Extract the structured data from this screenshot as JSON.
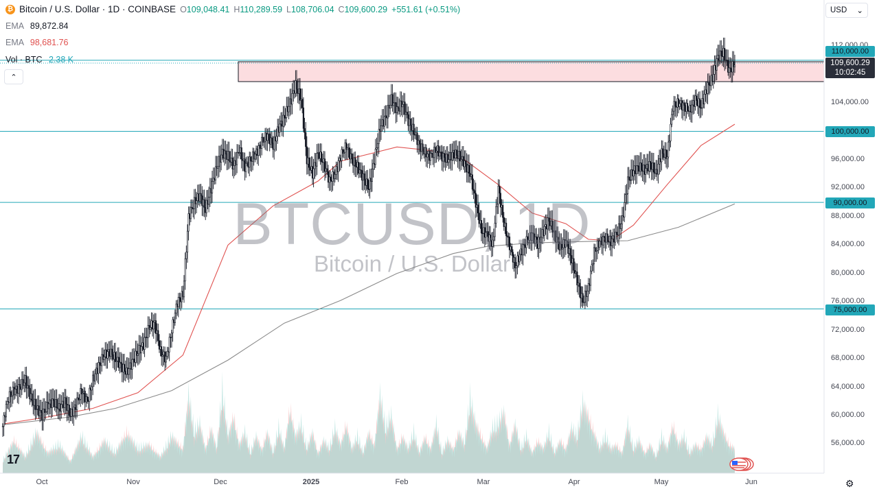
{
  "legend": {
    "coin_symbol": "₿",
    "title": "Bitcoin / U.S. Dollar · 1D · COINBASE",
    "open_key": "O",
    "open": "109,048.41",
    "high_key": "H",
    "high": "110,289.59",
    "low_key": "L",
    "low": "108,706.04",
    "close_key": "C",
    "close": "109,600.29",
    "change": "+551.61 (+0.51%)",
    "ema1_label": "EMA",
    "ema1_value": "89,872.84",
    "ema2_label": "EMA",
    "ema2_value": "98,681.76",
    "vol_label": "Vol · BTC",
    "vol_value": "2.38 K",
    "collapse_icon": "chevron-up-icon",
    "collapse_glyph": "⌃"
  },
  "currency": {
    "value": "USD",
    "chevron": "⌄"
  },
  "watermark": {
    "symbol": "BTCUSD, 1D",
    "name": "Bitcoin / U.S. Dollar"
  },
  "price_tags": {
    "level_110k": "110,000.00",
    "current_price": "109,600.29",
    "countdown": "10:02:45",
    "level_100k": "100,000.00",
    "level_90k": "90,000.00",
    "level_75k": "75,000.00"
  },
  "y_axis_ticks": [
    "112,000.00",
    "104,000.00",
    "96,000.00",
    "92,000.00",
    "88,000.00",
    "84,000.00",
    "80,000.00",
    "76,000.00",
    "72,000.00",
    "68,000.00",
    "64,000.00",
    "60,000.00",
    "56,000.00"
  ],
  "x_axis_ticks": [
    "Oct",
    "Nov",
    "Dec",
    "2025",
    "Feb",
    "Mar",
    "Apr",
    "May",
    "Jun"
  ],
  "logo_text": "17",
  "colors": {
    "up": "#089981",
    "down": "#131722",
    "ema50": "#e0514f",
    "ema200": "#8a8a8a",
    "levels": "#22a7b8",
    "zone_fill": "#fcdde0",
    "vol_up": "#a9dcd6",
    "vol_down": "#f7b8b8"
  },
  "chart_data": {
    "type": "candlestick",
    "title": "Bitcoin / U.S. Dollar · 1D · COINBASE",
    "ylim": [
      52000,
      114000
    ],
    "x_axis_labels": [
      "Oct",
      "Nov",
      "Dec",
      "2025",
      "Feb",
      "Mar",
      "Apr",
      "May",
      "Jun"
    ],
    "horizontal_levels": [
      110000,
      100000,
      90000,
      75000
    ],
    "resistance_zone": [
      107000,
      109800
    ],
    "close_path": [
      [
        0,
        58500
      ],
      [
        2,
        60500
      ],
      [
        5,
        62500
      ],
      [
        10,
        63500
      ],
      [
        15,
        64000
      ],
      [
        20,
        65000
      ],
      [
        25,
        62500
      ],
      [
        30,
        61000
      ],
      [
        35,
        60000
      ],
      [
        40,
        61500
      ],
      [
        45,
        62000
      ],
      [
        50,
        61000
      ],
      [
        55,
        62000
      ],
      [
        60,
        60000
      ],
      [
        65,
        61500
      ],
      [
        70,
        63500
      ],
      [
        75,
        62000
      ],
      [
        80,
        65000
      ],
      [
        85,
        67000
      ],
      [
        90,
        68500
      ],
      [
        95,
        69000
      ],
      [
        100,
        68000
      ],
      [
        105,
        67000
      ],
      [
        110,
        66000
      ],
      [
        115,
        67500
      ],
      [
        120,
        69000
      ],
      [
        125,
        70000
      ],
      [
        130,
        72500
      ],
      [
        135,
        73000
      ],
      [
        140,
        69000
      ],
      [
        145,
        68000
      ],
      [
        150,
        72000
      ],
      [
        155,
        76000
      ],
      [
        160,
        77000
      ],
      [
        165,
        88000
      ],
      [
        170,
        90000
      ],
      [
        175,
        91000
      ],
      [
        180,
        89000
      ],
      [
        185,
        92000
      ],
      [
        190,
        95000
      ],
      [
        195,
        97000
      ],
      [
        200,
        96500
      ],
      [
        205,
        95000
      ],
      [
        210,
        97500
      ],
      [
        215,
        95000
      ],
      [
        220,
        96000
      ],
      [
        225,
        97000
      ],
      [
        230,
        98500
      ],
      [
        235,
        99500
      ],
      [
        240,
        98000
      ],
      [
        245,
        100500
      ],
      [
        250,
        102000
      ],
      [
        255,
        104000
      ],
      [
        260,
        106500
      ],
      [
        265,
        104500
      ],
      [
        270,
        96000
      ],
      [
        275,
        94000
      ],
      [
        280,
        97000
      ],
      [
        285,
        95500
      ],
      [
        290,
        93000
      ],
      [
        295,
        94000
      ],
      [
        300,
        96500
      ],
      [
        305,
        98000
      ],
      [
        310,
        96000
      ],
      [
        315,
        95000
      ],
      [
        320,
        93500
      ],
      [
        325,
        92000
      ],
      [
        330,
        96000
      ],
      [
        335,
        100500
      ],
      [
        340,
        102000
      ],
      [
        345,
        104500
      ],
      [
        350,
        103000
      ],
      [
        355,
        104000
      ],
      [
        360,
        101500
      ],
      [
        365,
        100000
      ],
      [
        370,
        98000
      ],
      [
        375,
        97000
      ],
      [
        380,
        96500
      ],
      [
        385,
        97500
      ],
      [
        390,
        96500
      ],
      [
        395,
        96000
      ],
      [
        400,
        97000
      ],
      [
        405,
        96500
      ],
      [
        410,
        95500
      ],
      [
        415,
        94000
      ],
      [
        420,
        90000
      ],
      [
        425,
        86000
      ],
      [
        430,
        85500
      ],
      [
        435,
        84000
      ],
      [
        440,
        92000
      ],
      [
        445,
        87000
      ],
      [
        450,
        84000
      ],
      [
        455,
        81000
      ],
      [
        460,
        83000
      ],
      [
        465,
        84500
      ],
      [
        470,
        85500
      ],
      [
        475,
        84000
      ],
      [
        480,
        86000
      ],
      [
        485,
        87500
      ],
      [
        490,
        85500
      ],
      [
        495,
        83500
      ],
      [
        500,
        84500
      ],
      [
        505,
        82000
      ],
      [
        510,
        79000
      ],
      [
        515,
        76000
      ],
      [
        520,
        78000
      ],
      [
        525,
        83000
      ],
      [
        530,
        84500
      ],
      [
        535,
        85000
      ],
      [
        540,
        84500
      ],
      [
        545,
        85500
      ],
      [
        550,
        87500
      ],
      [
        555,
        93000
      ],
      [
        560,
        94500
      ],
      [
        565,
        95000
      ],
      [
        570,
        94500
      ],
      [
        575,
        95500
      ],
      [
        580,
        94000
      ],
      [
        585,
        97000
      ],
      [
        590,
        96500
      ],
      [
        595,
        103500
      ],
      [
        600,
        104000
      ],
      [
        605,
        103500
      ],
      [
        610,
        103000
      ],
      [
        615,
        104500
      ],
      [
        620,
        103500
      ],
      [
        625,
        106000
      ],
      [
        630,
        107500
      ],
      [
        635,
        110500
      ],
      [
        640,
        111000
      ],
      [
        645,
        108500
      ],
      [
        650,
        109600
      ]
    ],
    "ema50_path": [
      [
        0,
        58800
      ],
      [
        40,
        59800
      ],
      [
        80,
        61000
      ],
      [
        120,
        63200
      ],
      [
        160,
        68500
      ],
      [
        200,
        84000
      ],
      [
        240,
        89500
      ],
      [
        280,
        93000
      ],
      [
        300,
        95800
      ],
      [
        330,
        97000
      ],
      [
        350,
        97800
      ],
      [
        380,
        97300
      ],
      [
        410,
        96000
      ],
      [
        440,
        92500
      ],
      [
        470,
        88500
      ],
      [
        500,
        87000
      ],
      [
        520,
        84800
      ],
      [
        540,
        84600
      ],
      [
        560,
        86800
      ],
      [
        590,
        92500
      ],
      [
        620,
        98000
      ],
      [
        650,
        101000
      ]
    ],
    "ema200_path": [
      [
        0,
        58700
      ],
      [
        60,
        59800
      ],
      [
        100,
        61000
      ],
      [
        150,
        63500
      ],
      [
        200,
        67800
      ],
      [
        250,
        73000
      ],
      [
        300,
        76200
      ],
      [
        350,
        80000
      ],
      [
        400,
        82800
      ],
      [
        430,
        83800
      ],
      [
        470,
        84300
      ],
      [
        520,
        84500
      ],
      [
        555,
        84600
      ],
      [
        600,
        86500
      ],
      [
        650,
        89800
      ]
    ],
    "volume_profile": [
      [
        0,
        0.15
      ],
      [
        10,
        0.4
      ],
      [
        20,
        0.2
      ],
      [
        30,
        0.5
      ],
      [
        40,
        0.25
      ],
      [
        50,
        0.35
      ],
      [
        60,
        0.15
      ],
      [
        70,
        0.45
      ],
      [
        80,
        0.2
      ],
      [
        90,
        0.4
      ],
      [
        100,
        0.25
      ],
      [
        110,
        0.5
      ],
      [
        120,
        0.3
      ],
      [
        130,
        0.35
      ],
      [
        140,
        0.2
      ],
      [
        150,
        0.45
      ],
      [
        160,
        0.3
      ],
      [
        165,
        0.95
      ],
      [
        170,
        0.5
      ],
      [
        175,
        0.6
      ],
      [
        180,
        0.3
      ],
      [
        185,
        0.55
      ],
      [
        190,
        0.3
      ],
      [
        195,
        1.0
      ],
      [
        200,
        0.45
      ],
      [
        205,
        0.7
      ],
      [
        210,
        0.35
      ],
      [
        215,
        0.5
      ],
      [
        220,
        0.25
      ],
      [
        225,
        0.45
      ],
      [
        230,
        0.3
      ],
      [
        235,
        0.5
      ],
      [
        240,
        0.25
      ],
      [
        245,
        0.55
      ],
      [
        250,
        0.3
      ],
      [
        255,
        0.8
      ],
      [
        260,
        0.45
      ],
      [
        265,
        0.6
      ],
      [
        270,
        0.3
      ],
      [
        275,
        0.5
      ],
      [
        280,
        0.25
      ],
      [
        285,
        0.4
      ],
      [
        290,
        0.3
      ],
      [
        295,
        0.55
      ],
      [
        300,
        0.35
      ],
      [
        305,
        0.6
      ],
      [
        310,
        0.3
      ],
      [
        315,
        0.45
      ],
      [
        320,
        0.25
      ],
      [
        325,
        0.5
      ],
      [
        330,
        0.35
      ],
      [
        335,
        0.95
      ],
      [
        340,
        0.55
      ],
      [
        345,
        0.7
      ],
      [
        350,
        0.3
      ],
      [
        355,
        0.45
      ],
      [
        360,
        0.3
      ],
      [
        365,
        0.5
      ],
      [
        370,
        0.25
      ],
      [
        375,
        0.45
      ],
      [
        380,
        0.3
      ],
      [
        385,
        0.6
      ],
      [
        390,
        0.25
      ],
      [
        395,
        0.4
      ],
      [
        400,
        0.3
      ],
      [
        405,
        0.5
      ],
      [
        410,
        0.35
      ],
      [
        415,
        0.9
      ],
      [
        420,
        0.6
      ],
      [
        425,
        0.45
      ],
      [
        430,
        0.3
      ],
      [
        435,
        0.55
      ],
      [
        440,
        0.6
      ],
      [
        445,
        0.75
      ],
      [
        450,
        0.35
      ],
      [
        455,
        0.6
      ],
      [
        460,
        0.3
      ],
      [
        465,
        0.45
      ],
      [
        470,
        0.25
      ],
      [
        475,
        0.4
      ],
      [
        480,
        0.3
      ],
      [
        485,
        0.5
      ],
      [
        490,
        0.25
      ],
      [
        495,
        0.4
      ],
      [
        500,
        0.3
      ],
      [
        505,
        0.55
      ],
      [
        510,
        0.45
      ],
      [
        515,
        0.85
      ],
      [
        520,
        0.7
      ],
      [
        525,
        0.5
      ],
      [
        530,
        0.3
      ],
      [
        535,
        0.45
      ],
      [
        540,
        0.3
      ],
      [
        545,
        0.35
      ],
      [
        550,
        0.25
      ],
      [
        555,
        0.6
      ],
      [
        560,
        0.3
      ],
      [
        565,
        0.4
      ],
      [
        570,
        0.25
      ],
      [
        575,
        0.35
      ],
      [
        580,
        0.2
      ],
      [
        585,
        0.45
      ],
      [
        590,
        0.3
      ],
      [
        595,
        0.6
      ],
      [
        600,
        0.35
      ],
      [
        605,
        0.45
      ],
      [
        610,
        0.25
      ],
      [
        615,
        0.35
      ],
      [
        620,
        0.3
      ],
      [
        625,
        0.45
      ],
      [
        630,
        0.35
      ],
      [
        635,
        0.7
      ],
      [
        640,
        0.5
      ],
      [
        645,
        0.35
      ],
      [
        650,
        0.3
      ]
    ]
  }
}
